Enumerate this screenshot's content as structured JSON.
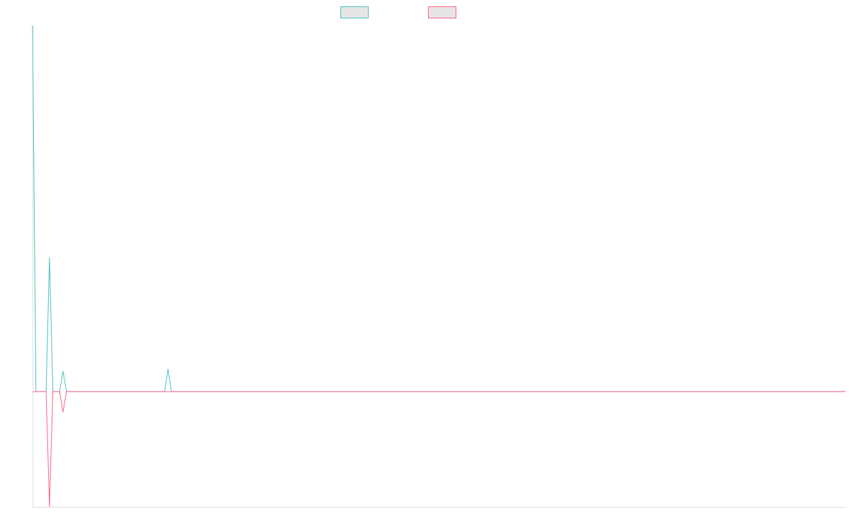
{
  "chart_data": {
    "type": "line",
    "x": [
      0,
      1,
      4,
      5,
      6,
      8,
      9,
      10,
      39,
      40,
      41,
      240
    ],
    "xlim": [
      0,
      240
    ],
    "ylim": [
      -3.15,
      10
    ],
    "series": [
      {
        "color": "#4bc0c0",
        "values": [
          10,
          0,
          0,
          3.67,
          0,
          0,
          0.56,
          0,
          0,
          0.62,
          0,
          0
        ]
      },
      {
        "color": "#ff6384",
        "values": [
          0,
          0,
          0,
          -3.15,
          0,
          0,
          -0.56,
          0,
          0,
          0,
          0,
          0
        ]
      }
    ],
    "legend": "top"
  }
}
